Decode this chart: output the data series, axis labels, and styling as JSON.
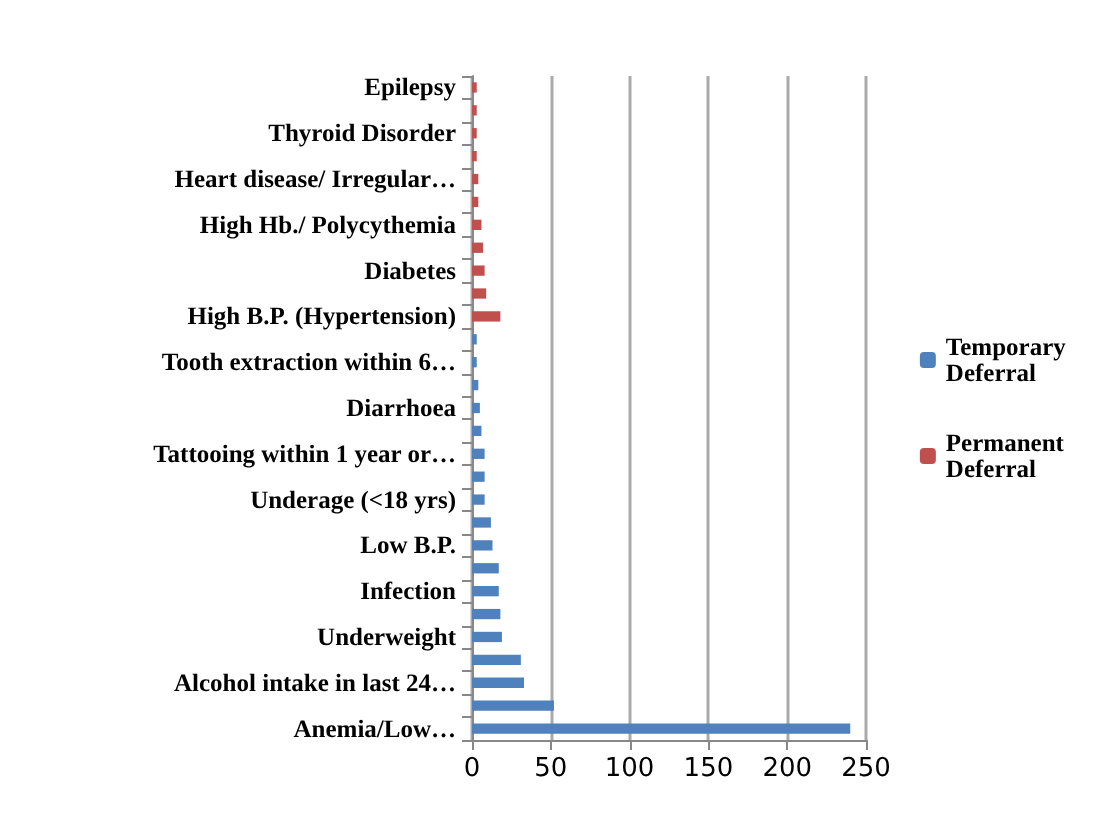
{
  "chart_data": {
    "type": "bar",
    "orientation": "horizontal",
    "categories": [
      "Epilepsy",
      null,
      "Thyroid Disorder",
      null,
      "Heart disease/ Irregular…",
      null,
      "High Hb./ Polycythemia",
      null,
      "Diabetes",
      null,
      "High B.P. (Hypertension)",
      null,
      "Tooth extraction within 6…",
      null,
      "Diarrhoea",
      null,
      "Tattooing within 1 year or…",
      null,
      "Underage (<18 yrs)",
      null,
      "Low B.P.",
      null,
      "Infection",
      null,
      "Underweight",
      null,
      "Alcohol intake in last 24…",
      null,
      "Anemia/Low…"
    ],
    "series": [
      {
        "name": "Temporary Deferral",
        "color": "#4f81bd",
        "values": [
          null,
          null,
          null,
          null,
          null,
          null,
          null,
          null,
          null,
          null,
          null,
          3,
          3,
          4,
          5,
          6,
          8,
          8,
          8,
          12,
          13,
          17,
          17,
          18,
          19,
          31,
          33,
          52,
          240
        ]
      },
      {
        "name": "Permanent Deferral",
        "color": "#c0504d",
        "values": [
          3,
          3,
          3,
          3,
          4,
          4,
          6,
          7,
          8,
          9,
          18,
          null,
          null,
          null,
          null,
          null,
          null,
          null,
          null,
          null,
          null,
          null,
          null,
          null,
          null,
          null,
          null,
          null,
          null
        ]
      }
    ],
    "xlim": [
      0,
      250
    ],
    "xticks": [
      0,
      50,
      100,
      150,
      200,
      250
    ],
    "grid": "x",
    "legend": "right"
  }
}
